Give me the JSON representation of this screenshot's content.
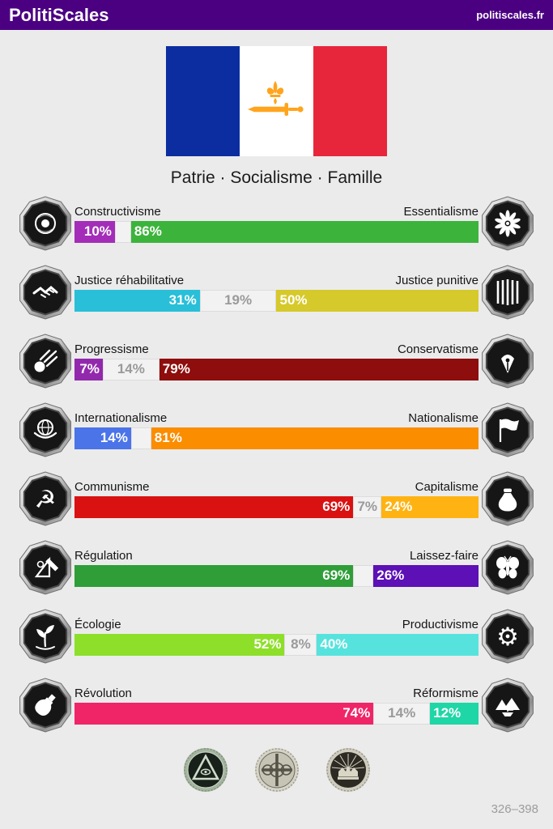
{
  "header": {
    "title": "PolitiScales",
    "site_link": "politiscales.fr",
    "bar_color": "#4b0082"
  },
  "flag": {
    "motto": "Patrie · Socialisme · Famille",
    "emblem": "fleur-de-lis-and-sword",
    "colors": {
      "blue": "#0b2da0",
      "white": "#ffffff",
      "red": "#e8263b",
      "emblem": "#ffa41c"
    }
  },
  "axes": [
    {
      "left_label": "Constructivisme",
      "right_label": "Essentialisme",
      "left_value": 10,
      "neutral_value": 4,
      "right_value": 86,
      "left_display": "10%",
      "neutral_display": "",
      "right_display": "86%",
      "left_color": "#a32db8",
      "right_color": "#3cb43c",
      "left_icon": "eye-orb-icon",
      "right_icon": "chrysanthemum-icon"
    },
    {
      "left_label": "Justice réhabilitative",
      "right_label": "Justice punitive",
      "left_value": 31,
      "neutral_value": 19,
      "right_value": 50,
      "left_display": "31%",
      "neutral_display": "19%",
      "right_display": "50%",
      "left_color": "#29bfd8",
      "right_color": "#d6c92b",
      "left_icon": "handshake-icon",
      "right_icon": "prison-bars-icon"
    },
    {
      "left_label": "Progressisme",
      "right_label": "Conservatisme",
      "left_value": 7,
      "neutral_value": 14,
      "right_value": 79,
      "left_display": "7%",
      "neutral_display": "14%",
      "right_display": "79%",
      "left_color": "#9229ad",
      "right_color": "#8e0d0d",
      "left_icon": "comet-icon",
      "right_icon": "pen-nib-icon"
    },
    {
      "left_label": "Internationalisme",
      "right_label": "Nationalisme",
      "left_value": 14,
      "neutral_value": 5,
      "right_value": 81,
      "left_display": "14%",
      "neutral_display": "",
      "right_display": "81%",
      "left_color": "#4a74e8",
      "right_color": "#fb8d00",
      "left_icon": "globe-wreath-icon",
      "right_icon": "flag-icon"
    },
    {
      "left_label": "Communisme",
      "right_label": "Capitalisme",
      "left_value": 69,
      "neutral_value": 7,
      "right_value": 24,
      "left_display": "69%",
      "neutral_display": "7%",
      "right_display": "24%",
      "left_color": "#da1111",
      "right_color": "#ffb313",
      "left_icon": "hammer-sickle-icon",
      "right_icon": "money-bag-icon"
    },
    {
      "left_label": "Régulation",
      "right_label": "Laissez-faire",
      "left_value": 69,
      "neutral_value": 5,
      "right_value": 26,
      "left_display": "69%",
      "neutral_display": "",
      "right_display": "26%",
      "left_color": "#2f9e38",
      "right_color": "#5c10b5",
      "left_icon": "measuring-tools-icon",
      "right_icon": "butterfly-icon"
    },
    {
      "left_label": "Écologie",
      "right_label": "Productivisme",
      "left_value": 52,
      "neutral_value": 8,
      "right_value": 40,
      "left_display": "52%",
      "neutral_display": "8%",
      "right_display": "40%",
      "left_color": "#8ddf2a",
      "right_color": "#57e3dd",
      "left_icon": "sprout-icon",
      "right_icon": "gear-icon"
    },
    {
      "left_label": "Révolution",
      "right_label": "Réformisme",
      "left_value": 74,
      "neutral_value": 14,
      "right_value": 12,
      "left_display": "74%",
      "neutral_display": "14%",
      "right_display": "12%",
      "left_color": "#ef2568",
      "right_color": "#1fd6a6",
      "left_icon": "molotov-icon",
      "right_icon": "boat-landscape-icon"
    }
  ],
  "achievement_badges": [
    {
      "icon": "pyramid-eye-coin"
    },
    {
      "icon": "missionary-cross-coin"
    },
    {
      "icon": "radiant-crown-coin"
    }
  ],
  "footer": {
    "score_range": "326–398"
  }
}
